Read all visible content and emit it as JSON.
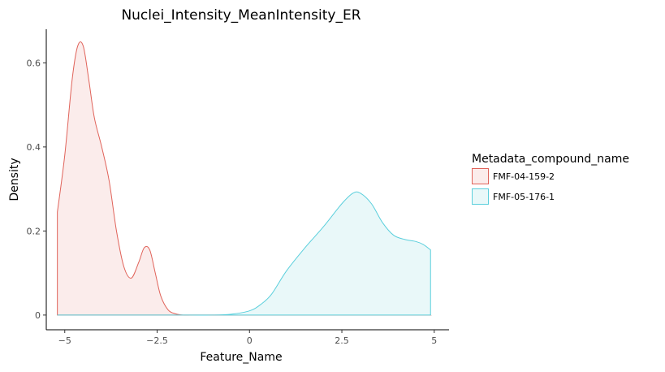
{
  "chart_data": {
    "type": "area",
    "title": "Nuclei_Intensity_MeanIntensity_ER",
    "xlabel": "Feature_Name",
    "ylabel": "Density",
    "xlim": [
      -5.5,
      5.4
    ],
    "ylim": [
      -0.035,
      0.68
    ],
    "xticks": [
      -5,
      -2.5,
      0,
      2.5,
      5
    ],
    "xtick_labels": [
      "−5",
      "−2.5",
      "0",
      "2.5",
      "5"
    ],
    "yticks": [
      0,
      0.2,
      0.4,
      0.6
    ],
    "ytick_labels": [
      "0",
      "0.2",
      "0.4",
      "0.6"
    ],
    "grid": false,
    "legend": {
      "title": "Metadata_compound_name",
      "position": "right"
    },
    "series": [
      {
        "name": "FMF-04-159-2",
        "color": "#e0635a",
        "fill": "#fbeceb",
        "x": [
          -5.2,
          -5.0,
          -4.8,
          -4.65,
          -4.5,
          -4.35,
          -4.2,
          -4.0,
          -3.8,
          -3.6,
          -3.4,
          -3.2,
          -3.0,
          -2.85,
          -2.7,
          -2.55,
          -2.4,
          -2.2,
          -2.0,
          -1.8,
          -1.6,
          -1.4,
          -1.0,
          0.0,
          1.0,
          2.5,
          4.0,
          4.9
        ],
        "y": [
          0.245,
          0.38,
          0.56,
          0.64,
          0.64,
          0.56,
          0.47,
          0.4,
          0.32,
          0.2,
          0.115,
          0.088,
          0.125,
          0.16,
          0.155,
          0.1,
          0.045,
          0.012,
          0.003,
          0.0,
          0.0,
          0.0,
          0.0,
          0.0,
          0.0,
          0.0,
          0.0,
          0.0
        ]
      },
      {
        "name": "FMF-05-176-1",
        "color": "#5bcfdc",
        "fill": "#e9f8f9",
        "x": [
          -5.2,
          -4.0,
          -3.0,
          -2.0,
          -1.0,
          -0.5,
          0.0,
          0.3,
          0.6,
          1.0,
          1.5,
          2.0,
          2.5,
          2.8,
          3.0,
          3.3,
          3.6,
          3.9,
          4.2,
          4.5,
          4.7,
          4.9
        ],
        "y": [
          0.0,
          0.0,
          0.0,
          0.0,
          0.0,
          0.002,
          0.01,
          0.025,
          0.05,
          0.105,
          0.16,
          0.21,
          0.265,
          0.29,
          0.29,
          0.265,
          0.22,
          0.19,
          0.18,
          0.175,
          0.168,
          0.155
        ]
      }
    ]
  }
}
